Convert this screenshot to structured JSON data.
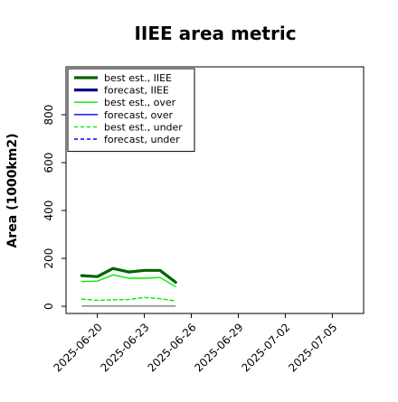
{
  "chart_data": {
    "type": "line",
    "title": "IIEE area metric",
    "ylabel": "Area (1000km2)",
    "xlabel": "",
    "ylim": [
      -30,
      1000
    ],
    "yticks": [
      0,
      200,
      400,
      600,
      800
    ],
    "xlim": [
      "2025-06-18",
      "2025-07-07"
    ],
    "xticks": [
      {
        "label": "2025-06-20",
        "date": "2025-06-20",
        "color": "#000000"
      },
      {
        "label": "2025-06-23",
        "date": "2025-06-23",
        "color": "#000000"
      },
      {
        "label": "2025-06-26",
        "date": "2025-06-26",
        "color": "#2ca02c"
      },
      {
        "label": "2025-06-29",
        "date": "2025-06-29",
        "color": "#000000"
      },
      {
        "label": "2025-07-02",
        "date": "2025-07-02",
        "color": "#000000"
      },
      {
        "label": "2025-07-05",
        "date": "2025-07-05",
        "color": "#000000"
      }
    ],
    "x": [
      "2025-06-19",
      "2025-06-20",
      "2025-06-21",
      "2025-06-22",
      "2025-06-23",
      "2025-06-24",
      "2025-06-25"
    ],
    "series": [
      {
        "name": "best est., IIEE",
        "color": "#006400",
        "style": "solid",
        "width": 3.2,
        "values": [
          128,
          124,
          158,
          143,
          150,
          150,
          100
        ]
      },
      {
        "name": "forecast, IIEE",
        "color": "#00008b",
        "style": "solid",
        "width": 3.2,
        "values": [
          null,
          null,
          null,
          null,
          null,
          null,
          null
        ]
      },
      {
        "name": "best est., over",
        "color": "#00ee00",
        "style": "solid",
        "width": 1.4,
        "values": [
          103,
          105,
          131,
          117,
          117,
          120,
          82
        ]
      },
      {
        "name": "forecast, over",
        "color": "#0000ff",
        "style": "solid",
        "width": 1.4,
        "values": [
          null,
          null,
          null,
          null,
          null,
          null,
          null
        ]
      },
      {
        "name": "best est., under",
        "color": "#00ee00",
        "style": "dashed",
        "width": 1.4,
        "values": [
          30,
          25,
          27,
          28,
          37,
          32,
          22
        ]
      },
      {
        "name": "forecast, under",
        "color": "#0000ff",
        "style": "dashed",
        "width": 1.4,
        "values": [
          null,
          null,
          null,
          null,
          null,
          null,
          null
        ]
      }
    ],
    "baseline": {
      "color": "#888888",
      "values": [
        1,
        1,
        1,
        1,
        1,
        1,
        1
      ]
    },
    "legend_position": "upper-left",
    "grid": false
  }
}
